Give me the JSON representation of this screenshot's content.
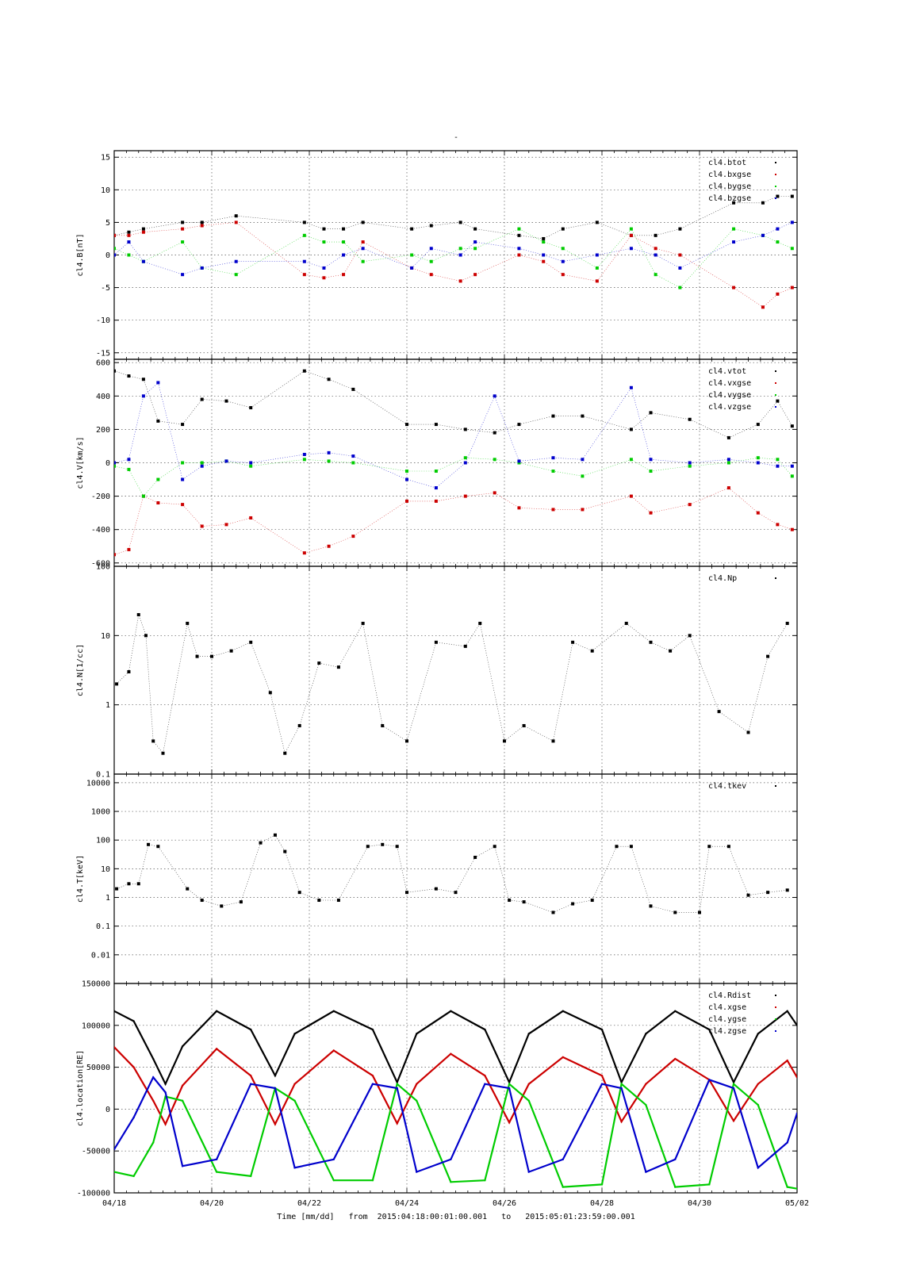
{
  "page": {
    "title": "-"
  },
  "footer": {
    "xlabel": "Time [mm/dd]",
    "from_label": "from",
    "from": "2015:04:18:00:01:00.001",
    "to_label": "to",
    "to": "2015:05:01:23:59:00.001"
  },
  "colors": {
    "black": "#000000",
    "red": "#cc0000",
    "green": "#00cc00",
    "blue": "#0000cc",
    "grid": "#555555"
  },
  "chart_data": [
    {
      "type": "scatter",
      "ylabel": "cl4.B[nT]",
      "ylim": [
        -16,
        16
      ],
      "yticks": [
        -15,
        -10,
        -5,
        0,
        5,
        10,
        15
      ],
      "ytick_labels": [
        "-15",
        "-10",
        "-5",
        "0",
        "5",
        "10",
        "15"
      ],
      "xlim": [
        0,
        14
      ],
      "grid": true,
      "legend": "top-right",
      "series": [
        {
          "name": "cl4.btot",
          "color": "black",
          "x": [
            0,
            0.3,
            0.6,
            1.4,
            1.8,
            2.5,
            3.9,
            4.3,
            4.7,
            5.1,
            6.1,
            6.5,
            7.1,
            7.4,
            8.3,
            8.8,
            9.2,
            9.9,
            10.6,
            11.1,
            11.6,
            12.7,
            13.3,
            13.6,
            13.9
          ],
          "y": [
            3,
            3.5,
            4,
            5,
            5,
            6,
            5,
            4,
            4,
            5,
            4,
            4.5,
            5,
            4,
            3,
            2.5,
            4,
            5,
            3,
            3,
            4,
            8,
            8,
            9,
            9
          ]
        },
        {
          "name": "cl4.bxgse",
          "color": "red",
          "x": [
            0,
            0.3,
            0.6,
            1.4,
            1.8,
            2.5,
            3.9,
            4.3,
            4.7,
            5.1,
            6.1,
            6.5,
            7.1,
            7.4,
            8.3,
            8.8,
            9.2,
            9.9,
            10.6,
            11.1,
            11.6,
            12.7,
            13.3,
            13.6,
            13.9
          ],
          "y": [
            3,
            3,
            3.5,
            4,
            4.5,
            5,
            -3,
            -3.5,
            -3,
            2,
            -2,
            -3,
            -4,
            -3,
            0,
            -1,
            -3,
            -4,
            3,
            1,
            0,
            -5,
            -8,
            -6,
            -5
          ]
        },
        {
          "name": "cl4.bygse",
          "color": "green",
          "x": [
            0,
            0.3,
            0.6,
            1.4,
            1.8,
            2.5,
            3.9,
            4.3,
            4.7,
            5.1,
            6.1,
            6.5,
            7.1,
            7.4,
            8.3,
            8.8,
            9.2,
            9.9,
            10.6,
            11.1,
            11.6,
            12.7,
            13.3,
            13.6,
            13.9
          ],
          "y": [
            1,
            0,
            -1,
            2,
            -2,
            -3,
            3,
            2,
            2,
            -1,
            0,
            -1,
            1,
            1,
            4,
            2,
            1,
            -2,
            4,
            -3,
            -5,
            4,
            3,
            2,
            1
          ]
        },
        {
          "name": "cl4.bzgse",
          "color": "blue",
          "x": [
            0,
            0.3,
            0.6,
            1.4,
            1.8,
            2.5,
            3.9,
            4.3,
            4.7,
            5.1,
            6.1,
            6.5,
            7.1,
            7.4,
            8.3,
            8.8,
            9.2,
            9.9,
            10.6,
            11.1,
            11.6,
            12.7,
            13.3,
            13.6,
            13.9
          ],
          "y": [
            0,
            2,
            -1,
            -3,
            -2,
            -1,
            -1,
            -2,
            0,
            1,
            -2,
            1,
            0,
            2,
            1,
            0,
            -1,
            0,
            1,
            0,
            -2,
            2,
            3,
            4,
            5
          ]
        }
      ]
    },
    {
      "type": "scatter",
      "ylabel": "cl4.V[km/s]",
      "ylim": [
        -620,
        620
      ],
      "yticks": [
        -600,
        -400,
        -200,
        0,
        200,
        400,
        600
      ],
      "ytick_labels": [
        "-600",
        "-400",
        "-200",
        "0",
        "200",
        "400",
        "600"
      ],
      "xlim": [
        0,
        14
      ],
      "grid": true,
      "legend": "top-right",
      "series": [
        {
          "name": "cl4.vtot",
          "color": "black",
          "x": [
            0,
            0.3,
            0.6,
            0.9,
            1.4,
            1.8,
            2.3,
            2.8,
            3.9,
            4.4,
            4.9,
            6.0,
            6.6,
            7.2,
            7.8,
            8.3,
            9.0,
            9.6,
            10.6,
            11.0,
            11.8,
            12.6,
            13.2,
            13.6,
            13.9
          ],
          "y": [
            550,
            520,
            500,
            250,
            230,
            380,
            370,
            330,
            550,
            500,
            440,
            230,
            230,
            200,
            180,
            230,
            280,
            280,
            200,
            300,
            260,
            150,
            230,
            370,
            220
          ]
        },
        {
          "name": "cl4.vxgse",
          "color": "red",
          "x": [
            0,
            0.3,
            0.6,
            0.9,
            1.4,
            1.8,
            2.3,
            2.8,
            3.9,
            4.4,
            4.9,
            6.0,
            6.6,
            7.2,
            7.8,
            8.3,
            9.0,
            9.6,
            10.6,
            11.0,
            11.8,
            12.6,
            13.2,
            13.6,
            13.9
          ],
          "y": [
            -550,
            -520,
            -200,
            -240,
            -250,
            -380,
            -370,
            -330,
            -540,
            -500,
            -440,
            -230,
            -230,
            -200,
            -180,
            -270,
            -280,
            -280,
            -200,
            -300,
            -250,
            -150,
            -300,
            -370,
            -400
          ]
        },
        {
          "name": "cl4.vygse",
          "color": "green",
          "x": [
            0,
            0.3,
            0.6,
            0.9,
            1.4,
            1.8,
            2.3,
            2.8,
            3.9,
            4.4,
            4.9,
            6.0,
            6.6,
            7.2,
            7.8,
            8.3,
            9.0,
            9.6,
            10.6,
            11.0,
            11.8,
            12.6,
            13.2,
            13.6,
            13.9
          ],
          "y": [
            -20,
            -40,
            -200,
            -100,
            0,
            0,
            10,
            -20,
            20,
            10,
            0,
            -50,
            -50,
            30,
            20,
            0,
            -50,
            -80,
            20,
            -50,
            -20,
            0,
            30,
            20,
            -80
          ]
        },
        {
          "name": "cl4.vzgse",
          "color": "blue",
          "x": [
            0,
            0.3,
            0.6,
            0.9,
            1.4,
            1.8,
            2.3,
            2.8,
            3.9,
            4.4,
            4.9,
            6.0,
            6.6,
            7.2,
            7.8,
            8.3,
            9.0,
            9.6,
            10.6,
            11.0,
            11.8,
            12.6,
            13.2,
            13.6,
            13.9
          ],
          "y": [
            0,
            20,
            400,
            480,
            -100,
            -20,
            10,
            0,
            50,
            60,
            40,
            -100,
            -150,
            0,
            400,
            10,
            30,
            20,
            450,
            20,
            0,
            20,
            0,
            -20,
            -20
          ]
        }
      ]
    },
    {
      "type": "scatter",
      "ylabel": "cl4.N[1/cc]",
      "yscale": "log",
      "ylim": [
        0.1,
        100
      ],
      "yticks": [
        0.1,
        1,
        10,
        100
      ],
      "ytick_labels": [
        "0.1",
        "1",
        "10",
        "100"
      ],
      "xlim": [
        0,
        14
      ],
      "grid": true,
      "legend": "top-right",
      "series": [
        {
          "name": "cl4.Np",
          "color": "black",
          "x": [
            0.05,
            0.3,
            0.5,
            0.65,
            0.8,
            1.0,
            1.5,
            1.7,
            2.0,
            2.4,
            2.8,
            3.2,
            3.5,
            3.8,
            4.2,
            4.6,
            5.1,
            5.5,
            6.0,
            6.6,
            7.2,
            7.5,
            8.0,
            8.4,
            9.0,
            9.4,
            9.8,
            10.5,
            11.0,
            11.4,
            11.8,
            12.4,
            13.0,
            13.4,
            13.8
          ],
          "y": [
            2,
            3,
            20,
            10,
            0.3,
            0.2,
            15,
            5,
            5,
            6,
            8,
            1.5,
            0.2,
            0.5,
            4,
            3.5,
            15,
            0.5,
            0.3,
            8,
            7,
            15,
            0.3,
            0.5,
            0.3,
            8,
            6,
            15,
            8,
            6,
            10,
            0.8,
            0.4,
            5,
            15
          ]
        }
      ]
    },
    {
      "type": "scatter",
      "ylabel": "cl4.T[keV]",
      "yscale": "log",
      "ylim": [
        0.001,
        20000
      ],
      "yticks": [
        0.01,
        0.1,
        1,
        10,
        100,
        1000,
        10000
      ],
      "ytick_labels": [
        "0.01",
        "0.1",
        "1",
        "10",
        "100",
        "1000",
        "10000"
      ],
      "xlim": [
        0,
        14
      ],
      "grid": true,
      "legend": "top-right",
      "series": [
        {
          "name": "cl4.tkev",
          "color": "black",
          "x": [
            0.05,
            0.3,
            0.5,
            0.7,
            0.9,
            1.5,
            1.8,
            2.2,
            2.6,
            3.0,
            3.3,
            3.5,
            3.8,
            4.2,
            4.6,
            5.2,
            5.5,
            5.8,
            6.0,
            6.6,
            7.0,
            7.4,
            7.8,
            8.1,
            8.4,
            9.0,
            9.4,
            9.8,
            10.3,
            10.6,
            11.0,
            11.5,
            12.0,
            12.2,
            12.6,
            13.0,
            13.4,
            13.8
          ],
          "y": [
            2,
            3,
            3,
            70,
            60,
            2,
            0.8,
            0.5,
            0.7,
            80,
            150,
            40,
            1.5,
            0.8,
            0.8,
            60,
            70,
            60,
            1.5,
            2,
            1.5,
            25,
            60,
            0.8,
            0.7,
            0.3,
            0.6,
            0.8,
            60,
            60,
            0.5,
            0.3,
            0.3,
            60,
            60,
            1.2,
            1.5,
            1.8
          ]
        }
      ]
    },
    {
      "type": "line",
      "ylabel": "cl4.location[RE]",
      "ylim": [
        -100000,
        150000
      ],
      "yticks": [
        -100000,
        -50000,
        0,
        50000,
        100000,
        150000
      ],
      "ytick_labels": [
        "-100000",
        "-50000",
        "0",
        "50000",
        "100000",
        "150000"
      ],
      "xlim": [
        0,
        14
      ],
      "grid": true,
      "legend": "top-right",
      "xticks": [
        0,
        2,
        4,
        6,
        8,
        10,
        12,
        14
      ],
      "xtick_labels": [
        "04/18",
        "04/20",
        "04/22",
        "04/24",
        "04/26",
        "04/28",
        "04/30",
        "05/02"
      ],
      "series": [
        {
          "name": "cl4.Rdist",
          "color": "black",
          "x": [
            0,
            0.4,
            0.8,
            1.05,
            1.4,
            2.1,
            2.8,
            3.3,
            3.7,
            4.5,
            5.3,
            5.8,
            6.2,
            6.9,
            7.6,
            8.1,
            8.5,
            9.2,
            10.0,
            10.4,
            10.9,
            11.5,
            12.2,
            12.7,
            13.2,
            13.8,
            14.0
          ],
          "y": [
            117000,
            105000,
            60000,
            30000,
            75000,
            117000,
            95000,
            40000,
            90000,
            117000,
            95000,
            32000,
            90000,
            117000,
            95000,
            32000,
            90000,
            117000,
            95000,
            32000,
            90000,
            117000,
            95000,
            32000,
            90000,
            117000,
            100000
          ]
        },
        {
          "name": "cl4.xgse",
          "color": "red",
          "x": [
            0,
            0.4,
            0.8,
            1.05,
            1.4,
            2.1,
            2.8,
            3.3,
            3.7,
            4.5,
            5.3,
            5.8,
            6.2,
            6.9,
            7.6,
            8.1,
            8.5,
            9.2,
            10.0,
            10.4,
            10.9,
            11.5,
            12.2,
            12.7,
            13.2,
            13.8,
            14.0
          ],
          "y": [
            74000,
            50000,
            10000,
            -18000,
            28000,
            72000,
            40000,
            -18000,
            30000,
            70000,
            40000,
            -17000,
            30000,
            66000,
            40000,
            -16000,
            30000,
            62000,
            40000,
            -15000,
            30000,
            60000,
            35000,
            -14000,
            30000,
            58000,
            38000
          ]
        },
        {
          "name": "cl4.ygse",
          "color": "green",
          "x": [
            0,
            0.4,
            0.8,
            1.05,
            1.4,
            2.1,
            2.8,
            3.3,
            3.7,
            4.5,
            5.3,
            5.8,
            6.2,
            6.9,
            7.6,
            8.1,
            8.5,
            9.2,
            10.0,
            10.4,
            10.9,
            11.5,
            12.2,
            12.7,
            13.2,
            13.8,
            14.0
          ],
          "y": [
            -75000,
            -80000,
            -40000,
            15000,
            10000,
            -75000,
            -80000,
            25000,
            10000,
            -85000,
            -85000,
            30000,
            10000,
            -87000,
            -85000,
            30000,
            10000,
            -93000,
            -90000,
            30000,
            5000,
            -93000,
            -90000,
            30000,
            5000,
            -93000,
            -95000
          ]
        },
        {
          "name": "cl4.zgse",
          "color": "blue",
          "x": [
            0,
            0.4,
            0.8,
            1.05,
            1.4,
            2.1,
            2.8,
            3.3,
            3.7,
            4.5,
            5.3,
            5.8,
            6.2,
            6.9,
            7.6,
            8.1,
            8.5,
            9.2,
            10.0,
            10.4,
            10.9,
            11.5,
            12.2,
            12.7,
            13.2,
            13.8,
            14.0
          ],
          "y": [
            -48000,
            -10000,
            38000,
            20000,
            -68000,
            -60000,
            30000,
            25000,
            -70000,
            -60000,
            30000,
            25000,
            -75000,
            -60000,
            30000,
            25000,
            -75000,
            -60000,
            30000,
            25000,
            -75000,
            -60000,
            35000,
            25000,
            -70000,
            -40000,
            -5000
          ]
        }
      ]
    }
  ]
}
